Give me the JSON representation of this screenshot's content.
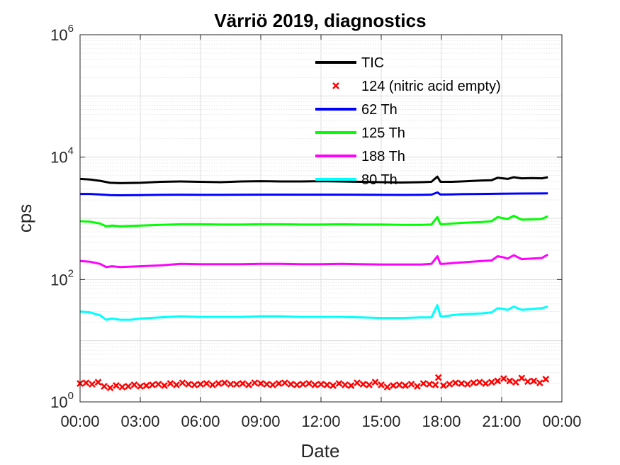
{
  "chart_data": {
    "type": "line",
    "title": "Värriö 2019, diagnostics",
    "xlabel": "Date",
    "ylabel": "cps",
    "yscale": "log",
    "ylim": [
      1,
      1000000
    ],
    "xlim_hours": [
      0,
      24
    ],
    "x_ticks": [
      "00:00",
      "03:00",
      "06:00",
      "09:00",
      "12:00",
      "15:00",
      "18:00",
      "21:00",
      "00:00"
    ],
    "y_ticks": [
      {
        "base": "10",
        "exp": "0",
        "value": 1
      },
      {
        "base": "10",
        "exp": "2",
        "value": 100
      },
      {
        "base": "10",
        "exp": "4",
        "value": 10000
      },
      {
        "base": "10",
        "exp": "6",
        "value": 1000000
      }
    ],
    "grid": true,
    "legend_position": "top-center",
    "series": [
      {
        "name": "TIC",
        "color": "#000000",
        "style": "line",
        "x": [
          0,
          0.5,
          1,
          1.5,
          2,
          3,
          4,
          5,
          6,
          7,
          8,
          9,
          10,
          11,
          12,
          13,
          14,
          15,
          16,
          17,
          17.5,
          17.8,
          17.95,
          18.1,
          18.5,
          19,
          20,
          20.5,
          20.8,
          21.3,
          21.6,
          22,
          22.5,
          23,
          23.3
        ],
        "y": [
          4400,
          4300,
          4100,
          3800,
          3750,
          3800,
          3950,
          4000,
          3950,
          3900,
          4000,
          4050,
          4000,
          4000,
          4050,
          4000,
          3950,
          3900,
          3850,
          3900,
          3950,
          4800,
          3950,
          3950,
          3950,
          4000,
          4150,
          4200,
          4600,
          4400,
          4700,
          4500,
          4550,
          4500,
          4700
        ]
      },
      {
        "name": "124 (nitric acid empty)",
        "color": "#ff0000",
        "style": "marker",
        "x": [
          0,
          0.3,
          0.6,
          0.9,
          1.2,
          1.5,
          1.8,
          2.1,
          2.4,
          2.7,
          3,
          3.3,
          3.6,
          3.9,
          4.2,
          4.5,
          4.8,
          5.1,
          5.4,
          5.7,
          6,
          6.3,
          6.6,
          6.9,
          7.2,
          7.5,
          7.8,
          8.1,
          8.4,
          8.7,
          9,
          9.3,
          9.6,
          9.9,
          10.2,
          10.5,
          10.8,
          11.1,
          11.4,
          11.7,
          12,
          12.3,
          12.6,
          12.9,
          13.2,
          13.5,
          13.8,
          14.1,
          14.4,
          14.7,
          15,
          15.3,
          15.6,
          15.9,
          16.2,
          16.5,
          16.8,
          17.1,
          17.4,
          17.7,
          17.85,
          18.1,
          18.4,
          18.7,
          19,
          19.3,
          19.6,
          19.9,
          20.2,
          20.5,
          20.8,
          21.1,
          21.4,
          21.7,
          22,
          22.3,
          22.6,
          22.9,
          23.2
        ],
        "y": [
          2.0,
          2.05,
          1.95,
          2.1,
          1.8,
          1.7,
          1.85,
          1.75,
          1.8,
          1.9,
          1.8,
          1.85,
          1.9,
          1.95,
          1.85,
          2.0,
          1.9,
          2.05,
          1.95,
          1.9,
          1.95,
          2.0,
          1.9,
          2.0,
          2.05,
          1.95,
          1.95,
          2.0,
          1.9,
          2.05,
          2.0,
          1.95,
          1.9,
          2.0,
          2.05,
          1.95,
          1.9,
          1.95,
          2.0,
          1.9,
          1.95,
          1.9,
          1.85,
          2.0,
          1.9,
          1.85,
          2.05,
          1.95,
          1.9,
          2.1,
          1.9,
          1.75,
          1.85,
          1.9,
          1.85,
          1.95,
          1.8,
          2.0,
          1.95,
          1.9,
          2.5,
          1.85,
          1.95,
          2.05,
          2.0,
          1.95,
          2.05,
          2.1,
          2.0,
          2.1,
          2.2,
          2.4,
          2.2,
          2.1,
          2.45,
          2.15,
          2.2,
          2.05,
          2.35
        ]
      },
      {
        "name": "62 Th",
        "color": "#0000ff",
        "style": "line",
        "x": [
          0,
          0.5,
          1,
          1.5,
          2,
          3,
          4,
          5,
          6,
          7,
          8,
          9,
          10,
          11,
          12,
          13,
          14,
          15,
          16,
          17,
          17.5,
          17.8,
          17.95,
          18.1,
          18.5,
          19,
          20,
          21,
          22,
          23,
          23.3
        ],
        "y": [
          2500,
          2500,
          2450,
          2400,
          2380,
          2400,
          2420,
          2430,
          2420,
          2420,
          2430,
          2440,
          2440,
          2440,
          2440,
          2440,
          2430,
          2420,
          2410,
          2420,
          2440,
          2650,
          2450,
          2450,
          2460,
          2480,
          2500,
          2520,
          2540,
          2550,
          2560
        ]
      },
      {
        "name": "125 Th",
        "color": "#00ff00",
        "style": "line",
        "x": [
          0,
          0.5,
          1,
          1.3,
          1.6,
          2,
          3,
          4,
          5,
          6,
          7,
          8,
          9,
          10,
          11,
          12,
          13,
          14,
          15,
          16,
          17,
          17.5,
          17.8,
          17.95,
          18.1,
          18.5,
          19,
          20,
          20.5,
          20.8,
          21.1,
          21.3,
          21.6,
          22,
          22.5,
          23,
          23.3
        ],
        "y": [
          900,
          880,
          820,
          740,
          760,
          740,
          760,
          780,
          800,
          800,
          790,
          790,
          800,
          800,
          790,
          790,
          800,
          790,
          790,
          780,
          780,
          790,
          1050,
          800,
          800,
          820,
          840,
          870,
          900,
          1050,
          1000,
          980,
          1100,
          950,
          960,
          980,
          1080
        ]
      },
      {
        "name": "188 Th",
        "color": "#ff00ff",
        "style": "line",
        "x": [
          0,
          0.5,
          1,
          1.3,
          1.6,
          2,
          3,
          4,
          5,
          6,
          7,
          8,
          9,
          10,
          11,
          12,
          13,
          14,
          15,
          16,
          17,
          17.5,
          17.8,
          17.95,
          18.1,
          18.5,
          19,
          20,
          20.5,
          20.8,
          21.1,
          21.3,
          21.6,
          22,
          22.5,
          23,
          23.3
        ],
        "y": [
          200,
          195,
          180,
          160,
          165,
          160,
          165,
          170,
          180,
          178,
          178,
          178,
          180,
          180,
          178,
          178,
          180,
          178,
          176,
          176,
          176,
          180,
          240,
          180,
          180,
          185,
          190,
          200,
          205,
          240,
          230,
          220,
          250,
          215,
          220,
          225,
          255
        ]
      },
      {
        "name": "80 Th",
        "color": "#00ffff",
        "style": "line",
        "x": [
          0,
          0.5,
          1,
          1.3,
          1.6,
          2,
          2.5,
          3,
          4,
          5,
          6,
          7,
          8,
          9,
          10,
          11,
          12,
          13,
          14,
          15,
          16,
          17,
          17.5,
          17.8,
          17.95,
          18.1,
          18.5,
          19,
          20,
          20.5,
          20.8,
          21.1,
          21.3,
          21.6,
          22,
          22.5,
          23,
          23.3
        ],
        "y": [
          30,
          29,
          26,
          22,
          23,
          22,
          22,
          23,
          24,
          25,
          24.5,
          24.5,
          24.5,
          25,
          25,
          24.5,
          24.5,
          24.5,
          24,
          23.5,
          23.5,
          24,
          24,
          38,
          25,
          25,
          26,
          27,
          28,
          29,
          34,
          33,
          32,
          36,
          32,
          33,
          34,
          36
        ]
      }
    ]
  }
}
